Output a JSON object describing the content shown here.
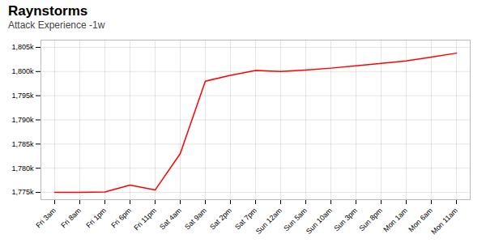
{
  "chart_data": {
    "type": "line",
    "title": "Raynstorms",
    "subtitle": "Attack Experience -1w",
    "categories": [
      "Fri 3am",
      "Fri 8am",
      "Fri 1pm",
      "Fri 6pm",
      "Fri 11pm",
      "Sat 4am",
      "Sat 9am",
      "Sat 2pm",
      "Sat 7pm",
      "Sun 12am",
      "Sun 5am",
      "Sun 10am",
      "Sun 3pm",
      "Sun 8pm",
      "Mon 1am",
      "Mon 6am",
      "Mon 11am"
    ],
    "values": [
      1775000,
      1775000,
      1775100,
      1776500,
      1775500,
      1783000,
      1798000,
      1799200,
      1800200,
      1800000,
      1800300,
      1800700,
      1801200,
      1801700,
      1802200,
      1803000,
      1803800
    ],
    "color": "#ff0000",
    "ylim": [
      1773500,
      1806500
    ],
    "yticks": [
      {
        "value": 1775000,
        "label": "1,775k"
      },
      {
        "value": 1780000,
        "label": "1,780k"
      },
      {
        "value": 1785000,
        "label": "1,785k"
      },
      {
        "value": 1790000,
        "label": "1,790k"
      },
      {
        "value": 1795000,
        "label": "1,795k"
      },
      {
        "value": 1800000,
        "label": "1,800k"
      },
      {
        "value": 1805000,
        "label": "1,805k"
      }
    ],
    "grid": true
  }
}
